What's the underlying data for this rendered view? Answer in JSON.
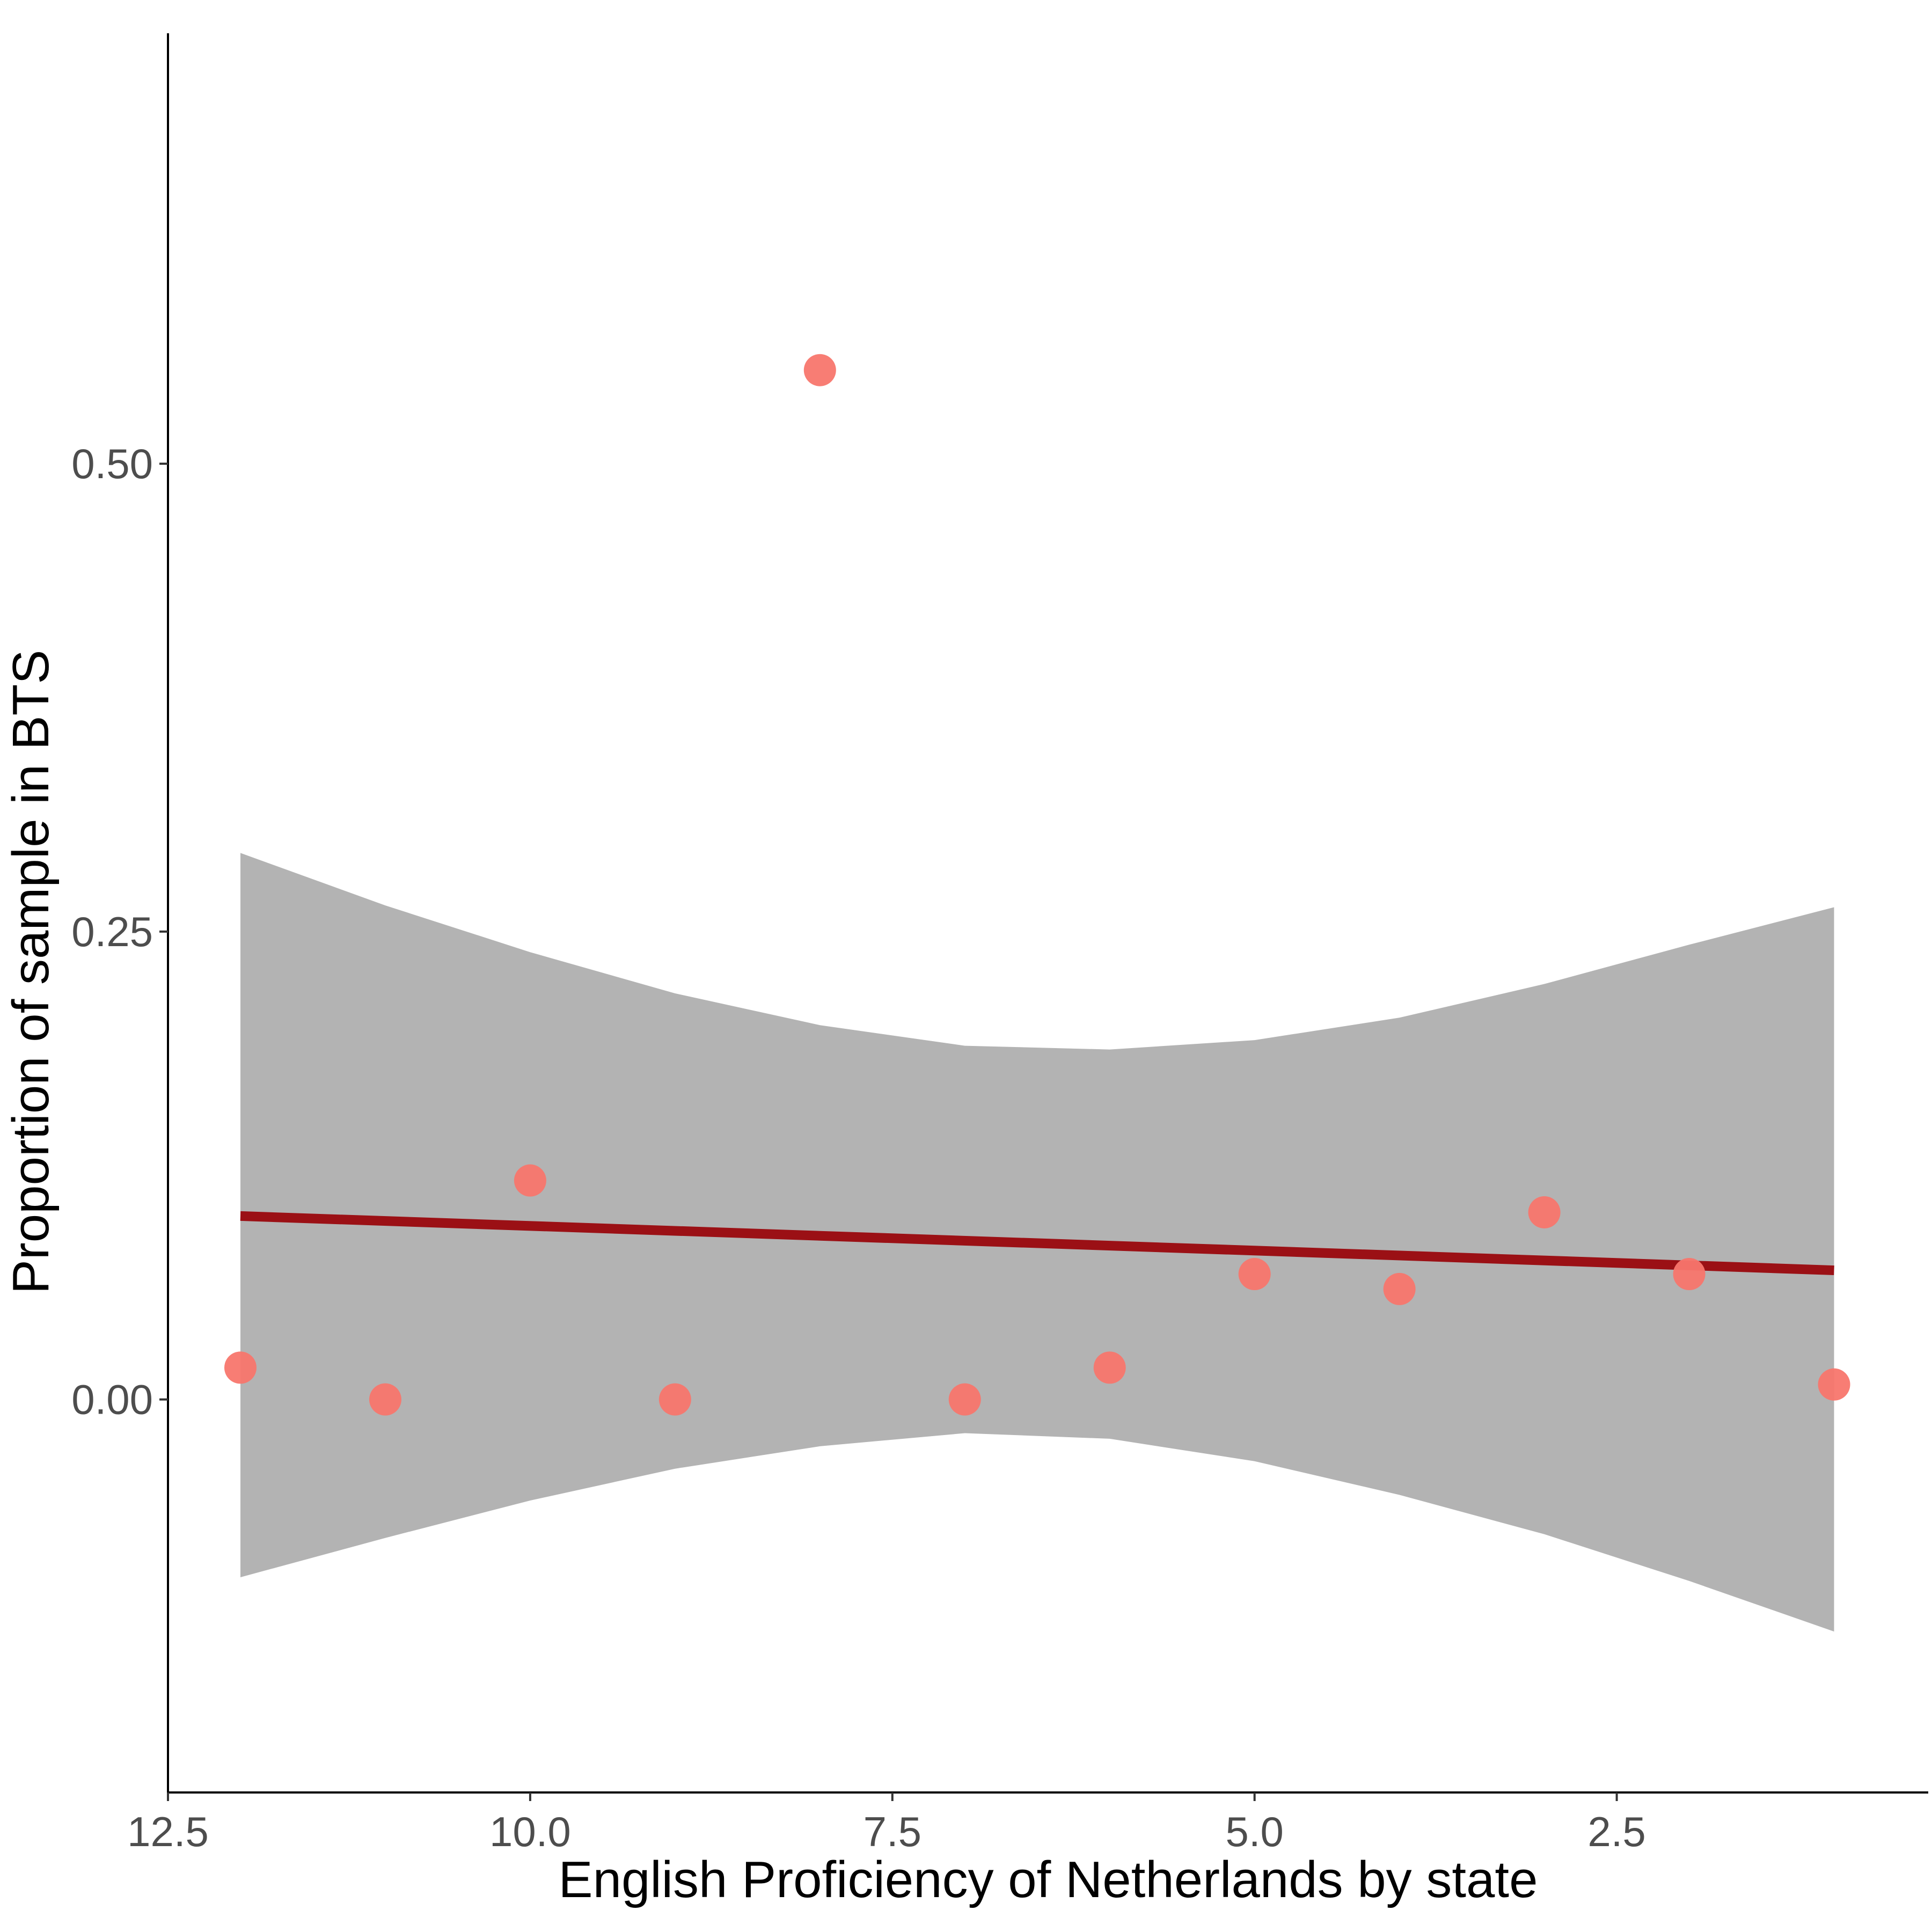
{
  "chart_data": {
    "type": "scatter",
    "title": "",
    "xlabel": "English Proficiency of Netherlands by state",
    "ylabel": "Proportion of sample in BTS",
    "x_reversed": true,
    "xlim": [
      12.5,
      0.35
    ],
    "ylim": [
      -0.21,
      0.73
    ],
    "x_ticks": [
      {
        "value": 12.5,
        "label": "12.5"
      },
      {
        "value": 10.0,
        "label": "10.0"
      },
      {
        "value": 7.5,
        "label": "7.5"
      },
      {
        "value": 5.0,
        "label": "5.0"
      },
      {
        "value": 2.5,
        "label": "2.5"
      }
    ],
    "y_ticks": [
      {
        "value": 0.0,
        "label": "0.00"
      },
      {
        "value": 0.25,
        "label": "0.25"
      },
      {
        "value": 0.5,
        "label": "0.50"
      }
    ],
    "grid": false,
    "legend": "none",
    "points": [
      {
        "x": 12,
        "y": 0.017
      },
      {
        "x": 11,
        "y": 0.0
      },
      {
        "x": 10,
        "y": 0.117
      },
      {
        "x": 9,
        "y": 0.0
      },
      {
        "x": 8,
        "y": 0.55
      },
      {
        "x": 7,
        "y": 0.0
      },
      {
        "x": 6,
        "y": 0.017
      },
      {
        "x": 5,
        "y": 0.067
      },
      {
        "x": 4,
        "y": 0.059
      },
      {
        "x": 3,
        "y": 0.1
      },
      {
        "x": 2,
        "y": 0.067
      },
      {
        "x": 1,
        "y": 0.008
      }
    ],
    "fit_line": {
      "x": [
        12,
        1
      ],
      "y": [
        0.098,
        0.069
      ]
    },
    "confidence_band": {
      "x": [
        12,
        11,
        10,
        9,
        8,
        7,
        6,
        5,
        4,
        3,
        2,
        1
      ],
      "upper": [
        0.292,
        0.264,
        0.239,
        0.217,
        0.2,
        0.189,
        0.187,
        0.192,
        0.204,
        0.222,
        0.243,
        0.263
      ],
      "lower": [
        -0.095,
        -0.074,
        -0.054,
        -0.037,
        -0.025,
        -0.018,
        -0.021,
        -0.033,
        -0.051,
        -0.072,
        -0.097,
        -0.124
      ]
    },
    "colors": {
      "point": "#F8766D",
      "fit_line": "#9B1015",
      "band": "#999999",
      "axis": "#000000"
    }
  }
}
